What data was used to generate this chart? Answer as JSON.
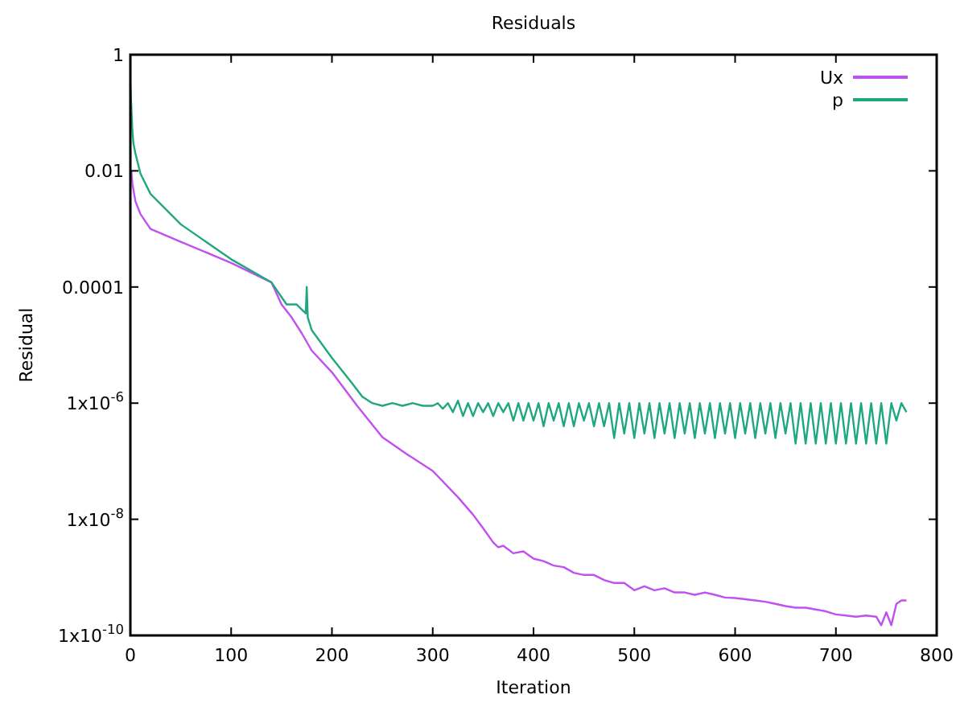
{
  "chart_data": {
    "type": "line",
    "title": "Residuals",
    "xlabel": "Iteration",
    "ylabel": "Residual",
    "log": "y",
    "legend": "top right",
    "grid": false,
    "marker": "none",
    "line_style": "solid",
    "xlim": [
      0,
      800
    ],
    "xticks": [
      0,
      100,
      200,
      300,
      400,
      500,
      600,
      700,
      800
    ],
    "ylim": [
      1e-10,
      1
    ],
    "yticks": [
      {
        "value": 1e-10,
        "label": "1x10$^{-10}$"
      },
      {
        "value": 1e-08,
        "label": "1x10$^{-8}$"
      },
      {
        "value": 1e-06,
        "label": "1x10$^{-6}$"
      },
      {
        "value": 0.0001,
        "label": "0.0001"
      },
      {
        "value": 0.01,
        "label": "0.01"
      },
      {
        "value": 1,
        "label": "1"
      }
    ],
    "series": [
      {
        "name": "Ux",
        "color": "#c050f0",
        "x": [
          1,
          2,
          5,
          10,
          20,
          50,
          100,
          140,
          150,
          160,
          170,
          180,
          200,
          225,
          250,
          275,
          300,
          325,
          340,
          350,
          360,
          365,
          370,
          380,
          390,
          400,
          410,
          420,
          430,
          440,
          450,
          460,
          470,
          480,
          490,
          500,
          510,
          520,
          530,
          540,
          550,
          560,
          570,
          580,
          590,
          600,
          610,
          620,
          630,
          640,
          650,
          660,
          670,
          680,
          690,
          700,
          710,
          720,
          730,
          740,
          745,
          750,
          755,
          760,
          765,
          770
        ],
        "values": [
          0.01,
          0.006,
          0.003,
          0.0018,
          0.001,
          0.0006,
          0.00026,
          0.00012,
          5e-05,
          3e-05,
          1.6e-05,
          8e-06,
          3.4e-06,
          9e-07,
          2.6e-07,
          1.3e-07,
          6.8e-08,
          2.4e-08,
          1.2e-08,
          7e-09,
          4e-09,
          3.3e-09,
          3.5e-09,
          2.6e-09,
          2.8e-09,
          2.1e-09,
          1.9e-09,
          1.6e-09,
          1.5e-09,
          1.2e-09,
          1.1e-09,
          1.1e-09,
          9e-10,
          8e-10,
          8e-10,
          6e-10,
          7e-10,
          6e-10,
          6.5e-10,
          5.5e-10,
          5.5e-10,
          5e-10,
          5.5e-10,
          5e-10,
          4.5e-10,
          4.4e-10,
          4.2e-10,
          4e-10,
          3.8e-10,
          3.5e-10,
          3.2e-10,
          3e-10,
          3e-10,
          2.8e-10,
          2.6e-10,
          2.3e-10,
          2.2e-10,
          2.1e-10,
          2.2e-10,
          2.1e-10,
          1.5e-10,
          2.5e-10,
          1.5e-10,
          3.5e-10,
          4e-10,
          4e-10
        ]
      },
      {
        "name": "p",
        "color": "#1fa880",
        "x": [
          0,
          2,
          3,
          5,
          10,
          20,
          50,
          100,
          140,
          155,
          165,
          174,
          175,
          176,
          180,
          200,
          220,
          230,
          240,
          250,
          260,
          270,
          280,
          290,
          300,
          305,
          310,
          315,
          320,
          325,
          330,
          335,
          340,
          345,
          350,
          355,
          360,
          365,
          370,
          375,
          380,
          385,
          390,
          395,
          400,
          405,
          410,
          415,
          420,
          425,
          430,
          435,
          440,
          445,
          450,
          455,
          460,
          465,
          470,
          475,
          480,
          485,
          490,
          495,
          500,
          505,
          510,
          515,
          520,
          525,
          530,
          535,
          540,
          545,
          550,
          555,
          560,
          565,
          570,
          575,
          580,
          585,
          590,
          595,
          600,
          605,
          610,
          615,
          620,
          625,
          630,
          635,
          640,
          645,
          650,
          655,
          660,
          665,
          670,
          675,
          680,
          685,
          690,
          695,
          700,
          705,
          710,
          715,
          720,
          725,
          730,
          735,
          740,
          745,
          750,
          755,
          760,
          765,
          770
        ],
        "values": [
          0.3,
          0.05,
          0.03,
          0.02,
          0.009,
          0.004,
          0.0012,
          0.0003,
          0.00012,
          5e-05,
          5e-05,
          3.5e-05,
          0.0001,
          3e-05,
          1.8e-05,
          6e-06,
          2.2e-06,
          1.3e-06,
          1e-06,
          9e-07,
          1e-06,
          9e-07,
          1e-06,
          9e-07,
          9e-07,
          1e-06,
          8e-07,
          1e-06,
          7e-07,
          1.1e-06,
          6e-07,
          1e-06,
          6e-07,
          1e-06,
          7e-07,
          1e-06,
          6e-07,
          1e-06,
          7e-07,
          1e-06,
          5e-07,
          1e-06,
          5e-07,
          1e-06,
          5e-07,
          1e-06,
          4e-07,
          1e-06,
          5e-07,
          1e-06,
          4e-07,
          1e-06,
          4e-07,
          1e-06,
          5e-07,
          1e-06,
          4e-07,
          1e-06,
          4e-07,
          1e-06,
          2.5e-07,
          1e-06,
          3e-07,
          1e-06,
          2.5e-07,
          1e-06,
          3e-07,
          1e-06,
          2.5e-07,
          1e-06,
          3e-07,
          1e-06,
          2.5e-07,
          1e-06,
          3e-07,
          1e-06,
          2.5e-07,
          1e-06,
          3e-07,
          1e-06,
          2.5e-07,
          1e-06,
          3e-07,
          1e-06,
          2.5e-07,
          1e-06,
          3e-07,
          1e-06,
          2.5e-07,
          1e-06,
          3e-07,
          1e-06,
          2.5e-07,
          1e-06,
          3e-07,
          1e-06,
          2e-07,
          1e-06,
          2e-07,
          1e-06,
          2e-07,
          1e-06,
          2e-07,
          1e-06,
          2e-07,
          1e-06,
          2e-07,
          1e-06,
          2e-07,
          1e-06,
          2e-07,
          1e-06,
          2e-07,
          1e-06,
          2e-07,
          1e-06,
          5e-07,
          1e-06,
          7e-07
        ]
      }
    ]
  }
}
